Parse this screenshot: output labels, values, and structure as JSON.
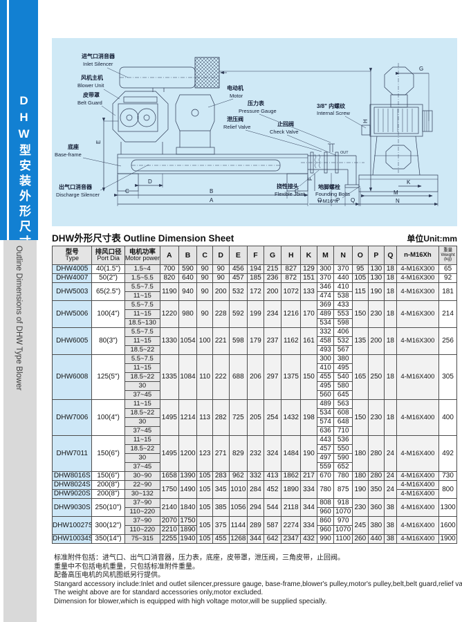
{
  "colors": {
    "accent_blue": "#1280d2",
    "panel_blue": "#cfe9f6",
    "type_cell_blue": "#cde7f7",
    "header_gray": "#e4e4e4",
    "border": "#4c4c4c"
  },
  "sidebar": {
    "title_cn": "DHW型安装外形尺寸图",
    "title_en": "Outline Dimensions of DHW Type Blower"
  },
  "diagram": {
    "callouts": [
      {
        "id": "inlet-silencer",
        "cn": "进气口消音器",
        "en": "Inlet Silencer"
      },
      {
        "id": "blower-unit",
        "cn": "风机主机",
        "en": "Blower Unit"
      },
      {
        "id": "belt-guard",
        "cn": "皮带罩",
        "en": "Belt Guard"
      },
      {
        "id": "motor",
        "cn": "电动机",
        "en": "Motor"
      },
      {
        "id": "pressure-gauge",
        "cn": "压力表",
        "en": "Pressure Gauge"
      },
      {
        "id": "relief-valve",
        "cn": "泄压阀",
        "en": "Relief Valve"
      },
      {
        "id": "check-valve",
        "cn": "止回阀",
        "en": "Check Valve"
      },
      {
        "id": "base-frame",
        "cn": "底座",
        "en": "Base-frame"
      },
      {
        "id": "discharge-silencer",
        "cn": "出气口消音器",
        "en": "Discharge Silencer"
      },
      {
        "id": "flexible-joint",
        "cn": "挠性接头",
        "en": "Flexible Joint"
      },
      {
        "id": "internal-screw",
        "cn": "3/8\" 内螺纹",
        "en": "Internal Screw"
      },
      {
        "id": "founding-bolts",
        "cn": "地脚螺栓",
        "en": "Founding Bolts",
        "extra": "n-M16*h"
      }
    ],
    "dims": [
      {
        "id": "dim-e",
        "label": "E"
      },
      {
        "id": "dim-d",
        "label": "D"
      },
      {
        "id": "dim-c-left",
        "label": "C"
      },
      {
        "id": "dim-b",
        "label": "B"
      },
      {
        "id": "dim-c-right",
        "label": "C"
      },
      {
        "id": "dim-a",
        "label": "A"
      },
      {
        "id": "dim-o",
        "label": "O"
      },
      {
        "id": "dim-p",
        "label": "P"
      },
      {
        "id": "dim-q",
        "label": "Q"
      },
      {
        "id": "dim-f",
        "label": "F"
      },
      {
        "id": "dim-h",
        "label": "H"
      },
      {
        "id": "out-label",
        "label": "OUT"
      },
      {
        "id": "dim-g",
        "label": "G"
      },
      {
        "id": "dim-k",
        "label": "K"
      },
      {
        "id": "dim-m",
        "label": "M"
      },
      {
        "id": "dim-n",
        "label": "N"
      }
    ]
  },
  "table": {
    "title": "DHW外形尺寸表 Outline Dimension Sheet",
    "unit": "单位Unit:mm",
    "headers": [
      {
        "cn": "型号",
        "en": "Type"
      },
      {
        "cn": "排风口径",
        "en": "Port Dia"
      },
      {
        "cn": "电机功率",
        "en": "Motor power"
      },
      {
        "label": "A"
      },
      {
        "label": "B"
      },
      {
        "label": "C"
      },
      {
        "label": "D"
      },
      {
        "label": "E"
      },
      {
        "label": "F"
      },
      {
        "label": "G"
      },
      {
        "label": "H"
      },
      {
        "label": "K"
      },
      {
        "label": "M"
      },
      {
        "label": "N"
      },
      {
        "label": "O"
      },
      {
        "label": "P"
      },
      {
        "label": "Q"
      },
      {
        "label": "n-M16Xh"
      },
      {
        "cn": "重量",
        "en": "Weight",
        "sub": "(kg)"
      }
    ],
    "groups": [
      {
        "type": "DHW4005",
        "port": "40(1.5\")",
        "powers": [
          "1.5~4"
        ],
        "A": [
          "700"
        ],
        "B": [
          "590"
        ],
        "C": "90",
        "D": "90",
        "E": "456",
        "F": "194",
        "G": "215",
        "H": "827",
        "K": "129",
        "MN": [
          [
            "300",
            "370"
          ]
        ],
        "O": "95",
        "P": "130",
        "Q": "18",
        "bolts": [
          "4-M16X300"
        ],
        "wt": "65"
      },
      {
        "type": "DHW4007",
        "port": "50(2\")",
        "powers": [
          "1.5~5.5"
        ],
        "A": [
          "820"
        ],
        "B": [
          "640"
        ],
        "C": "90",
        "D": "90",
        "E": "457",
        "F": "185",
        "G": "236",
        "H": "872",
        "K": "151",
        "MN": [
          [
            "370",
            "440"
          ]
        ],
        "O": "105",
        "P": "130",
        "Q": "18",
        "bolts": [
          "4-M16X300"
        ],
        "wt": "92"
      },
      {
        "type": "DHW5003",
        "port": "65(2.5\")",
        "powers": [
          "5.5~7.5",
          "11~15"
        ],
        "A": [
          "1190"
        ],
        "B": [
          "940"
        ],
        "C": "90",
        "D": "200",
        "E": "532",
        "F": "172",
        "G": "200",
        "H": "1072",
        "K": "133",
        "MN": [
          [
            "346",
            "410"
          ],
          [
            "474",
            "538"
          ]
        ],
        "O": "115",
        "P": "190",
        "Q": "18",
        "bolts": [
          "4-M16X300"
        ],
        "wt": "181"
      },
      {
        "type": "DHW5006",
        "port": "100(4\")",
        "powers": [
          "5.5~7.5",
          "11~15",
          "18.5~130"
        ],
        "A": [
          "1220"
        ],
        "B": [
          "980"
        ],
        "C": "90",
        "D": "228",
        "E": "592",
        "F": "199",
        "G": "234",
        "H": "1216",
        "K": "170",
        "MN": [
          [
            "369",
            "433"
          ],
          [
            "489",
            "553"
          ],
          [
            "534",
            "598"
          ]
        ],
        "O": "150",
        "P": "230",
        "Q": "18",
        "bolts": [
          "4-M16X300"
        ],
        "wt": "214"
      },
      {
        "type": "DHW6005",
        "port": "80(3\")",
        "powers": [
          "5.5~7.5",
          "11~15",
          "18.5~22"
        ],
        "A": [
          "1330"
        ],
        "B": [
          "1054"
        ],
        "C": "100",
        "D": "221",
        "E": "598",
        "F": "179",
        "G": "237",
        "H": "1162",
        "K": "161",
        "MN": [
          [
            "332",
            "406"
          ],
          [
            "458",
            "532"
          ],
          [
            "493",
            "567"
          ]
        ],
        "O": "135",
        "P": "200",
        "Q": "18",
        "bolts": [
          "4-M16X300"
        ],
        "wt": "256"
      },
      {
        "type": "DHW6008",
        "port": "125(5\")",
        "powers": [
          "5.5~7.5",
          "11~15",
          "18.5~22",
          "30",
          "37~45"
        ],
        "A": [
          "1335"
        ],
        "B": [
          "1084"
        ],
        "C": "110",
        "D": "222",
        "E": "688",
        "F": "206",
        "G": "297",
        "H": "1375",
        "K": "150",
        "MN": [
          [
            "300",
            "380"
          ],
          [
            "410",
            "495"
          ],
          [
            "455",
            "540"
          ],
          [
            "495",
            "580"
          ],
          [
            "560",
            "645"
          ]
        ],
        "O": "165",
        "P": "250",
        "Q": "18",
        "bolts": [
          "4-M16X400"
        ],
        "wt": "305"
      },
      {
        "type": "DHW7006",
        "port": "100(4\")",
        "powers": [
          "11~15",
          "18.5~22",
          "30",
          "37~45"
        ],
        "A": [
          "1495"
        ],
        "B": [
          "1214"
        ],
        "C": "113",
        "D": "282",
        "E": "725",
        "F": "205",
        "G": "254",
        "H": "1432",
        "K": "198",
        "MN": [
          [
            "489",
            "563"
          ],
          [
            "534",
            "608"
          ],
          [
            "574",
            "648"
          ],
          [
            "636",
            "710"
          ]
        ],
        "O": "150",
        "P": "230",
        "Q": "18",
        "bolts": [
          "4-M16X400"
        ],
        "wt": "400"
      },
      {
        "type": "DHW7011",
        "port": "150(6\")",
        "powers": [
          "11~15",
          "18.5~22",
          "30",
          "37~45"
        ],
        "A": [
          "1495"
        ],
        "B": [
          "1200"
        ],
        "C": "123",
        "D": "271",
        "E": "829",
        "F": "232",
        "G": "324",
        "H": "1484",
        "K": "190",
        "MN": [
          [
            "443",
            "536"
          ],
          [
            "457",
            "550"
          ],
          [
            "497",
            "590"
          ],
          [
            "559",
            "652"
          ]
        ],
        "O": "180",
        "P": "280",
        "Q": "24",
        "bolts": [
          "4-M16X400"
        ],
        "wt": "492"
      },
      {
        "type": "DHW8016S",
        "port": "150(6\")",
        "powers": [
          "30~90"
        ],
        "A": [
          "1658"
        ],
        "B": [
          "1390"
        ],
        "C": "105",
        "D": "283",
        "E": "962",
        "F": "332",
        "G": "413",
        "H": "1862",
        "K": "217",
        "MN": [
          [
            "670",
            "780"
          ]
        ],
        "O": "180",
        "P": "280",
        "Q": "24",
        "bolts": [
          "4-M16X400"
        ],
        "wt": "730"
      },
      {
        "models": [
          {
            "type": "DHW8024S",
            "port": "200(8\")",
            "power": "22~90",
            "bolt": "4-M16X400"
          },
          {
            "type": "DHW9020S",
            "port": "200(8\")",
            "power": "30~132",
            "bolt": "4-M16X400"
          }
        ],
        "A": [
          "1750"
        ],
        "B": [
          "1490"
        ],
        "C": "105",
        "D": "345",
        "E": "1010",
        "F": "284",
        "G": "452",
        "H": "1890",
        "K": "334",
        "MN": [
          [
            "780",
            "875"
          ]
        ],
        "O": "190",
        "P": "350",
        "Q": "24",
        "wt": "800"
      },
      {
        "type": "DHW9030S",
        "port": "250(10\")",
        "powers": [
          "37~90",
          "110~220"
        ],
        "A": [
          "2140"
        ],
        "B": [
          "1840"
        ],
        "C": "105",
        "D": "385",
        "E": "1056",
        "F": "294",
        "G": "544",
        "H": "2118",
        "K": "344",
        "MN": [
          [
            "808",
            "918"
          ],
          [
            "960",
            "1070"
          ]
        ],
        "O": "230",
        "P": "360",
        "Q": "38",
        "bolts": [
          "4-M16X400"
        ],
        "wt": "1300"
      },
      {
        "type": "DHW10027S",
        "port": "300(12\")",
        "powers": [
          "37~90",
          "110~220"
        ],
        "A": [
          "2070",
          "2210"
        ],
        "B": [
          "1750",
          "1890"
        ],
        "C": "105",
        "D": "375",
        "E": "1144",
        "F": "289",
        "G": "587",
        "H": "2274",
        "K": "334",
        "MN": [
          [
            "860",
            "970"
          ],
          [
            "960",
            "1070"
          ]
        ],
        "O": "245",
        "P": "380",
        "Q": "38",
        "bolts": [
          "4-M16X400"
        ],
        "wt": "1600"
      },
      {
        "type": "DHW10034S",
        "port": "350(14\")",
        "powers": [
          "75~315"
        ],
        "A": [
          "2255"
        ],
        "B": [
          "1940"
        ],
        "C": "105",
        "D": "455",
        "E": "1268",
        "F": "344",
        "G": "642",
        "H": "2347",
        "K": "432",
        "MN": [
          [
            "990",
            "1100"
          ]
        ],
        "O": "260",
        "P": "440",
        "Q": "38",
        "bolts": [
          "4-M16X400"
        ],
        "wt": "1900"
      }
    ]
  },
  "notes": [
    "标准附件包括：进气口、出气口消音器，压力表，底座，皮带罩，泄压阀，三角皮带，止回阀。",
    "重量中不包括电机重量，只包括标准附件重量。",
    "配备高压电机的风机图纸另行提供。",
    "Stangard accessory include:Inlet and outlet silencer,pressure gauge, base-frame,blower's pulley,motor's pulley,belt,belt guard,relief valve,check valve.",
    "The weight above are for standard accessories only,motor excluded.",
    "Dimension for blower,which is equipped with high voltage motor,will be supplied specially."
  ]
}
